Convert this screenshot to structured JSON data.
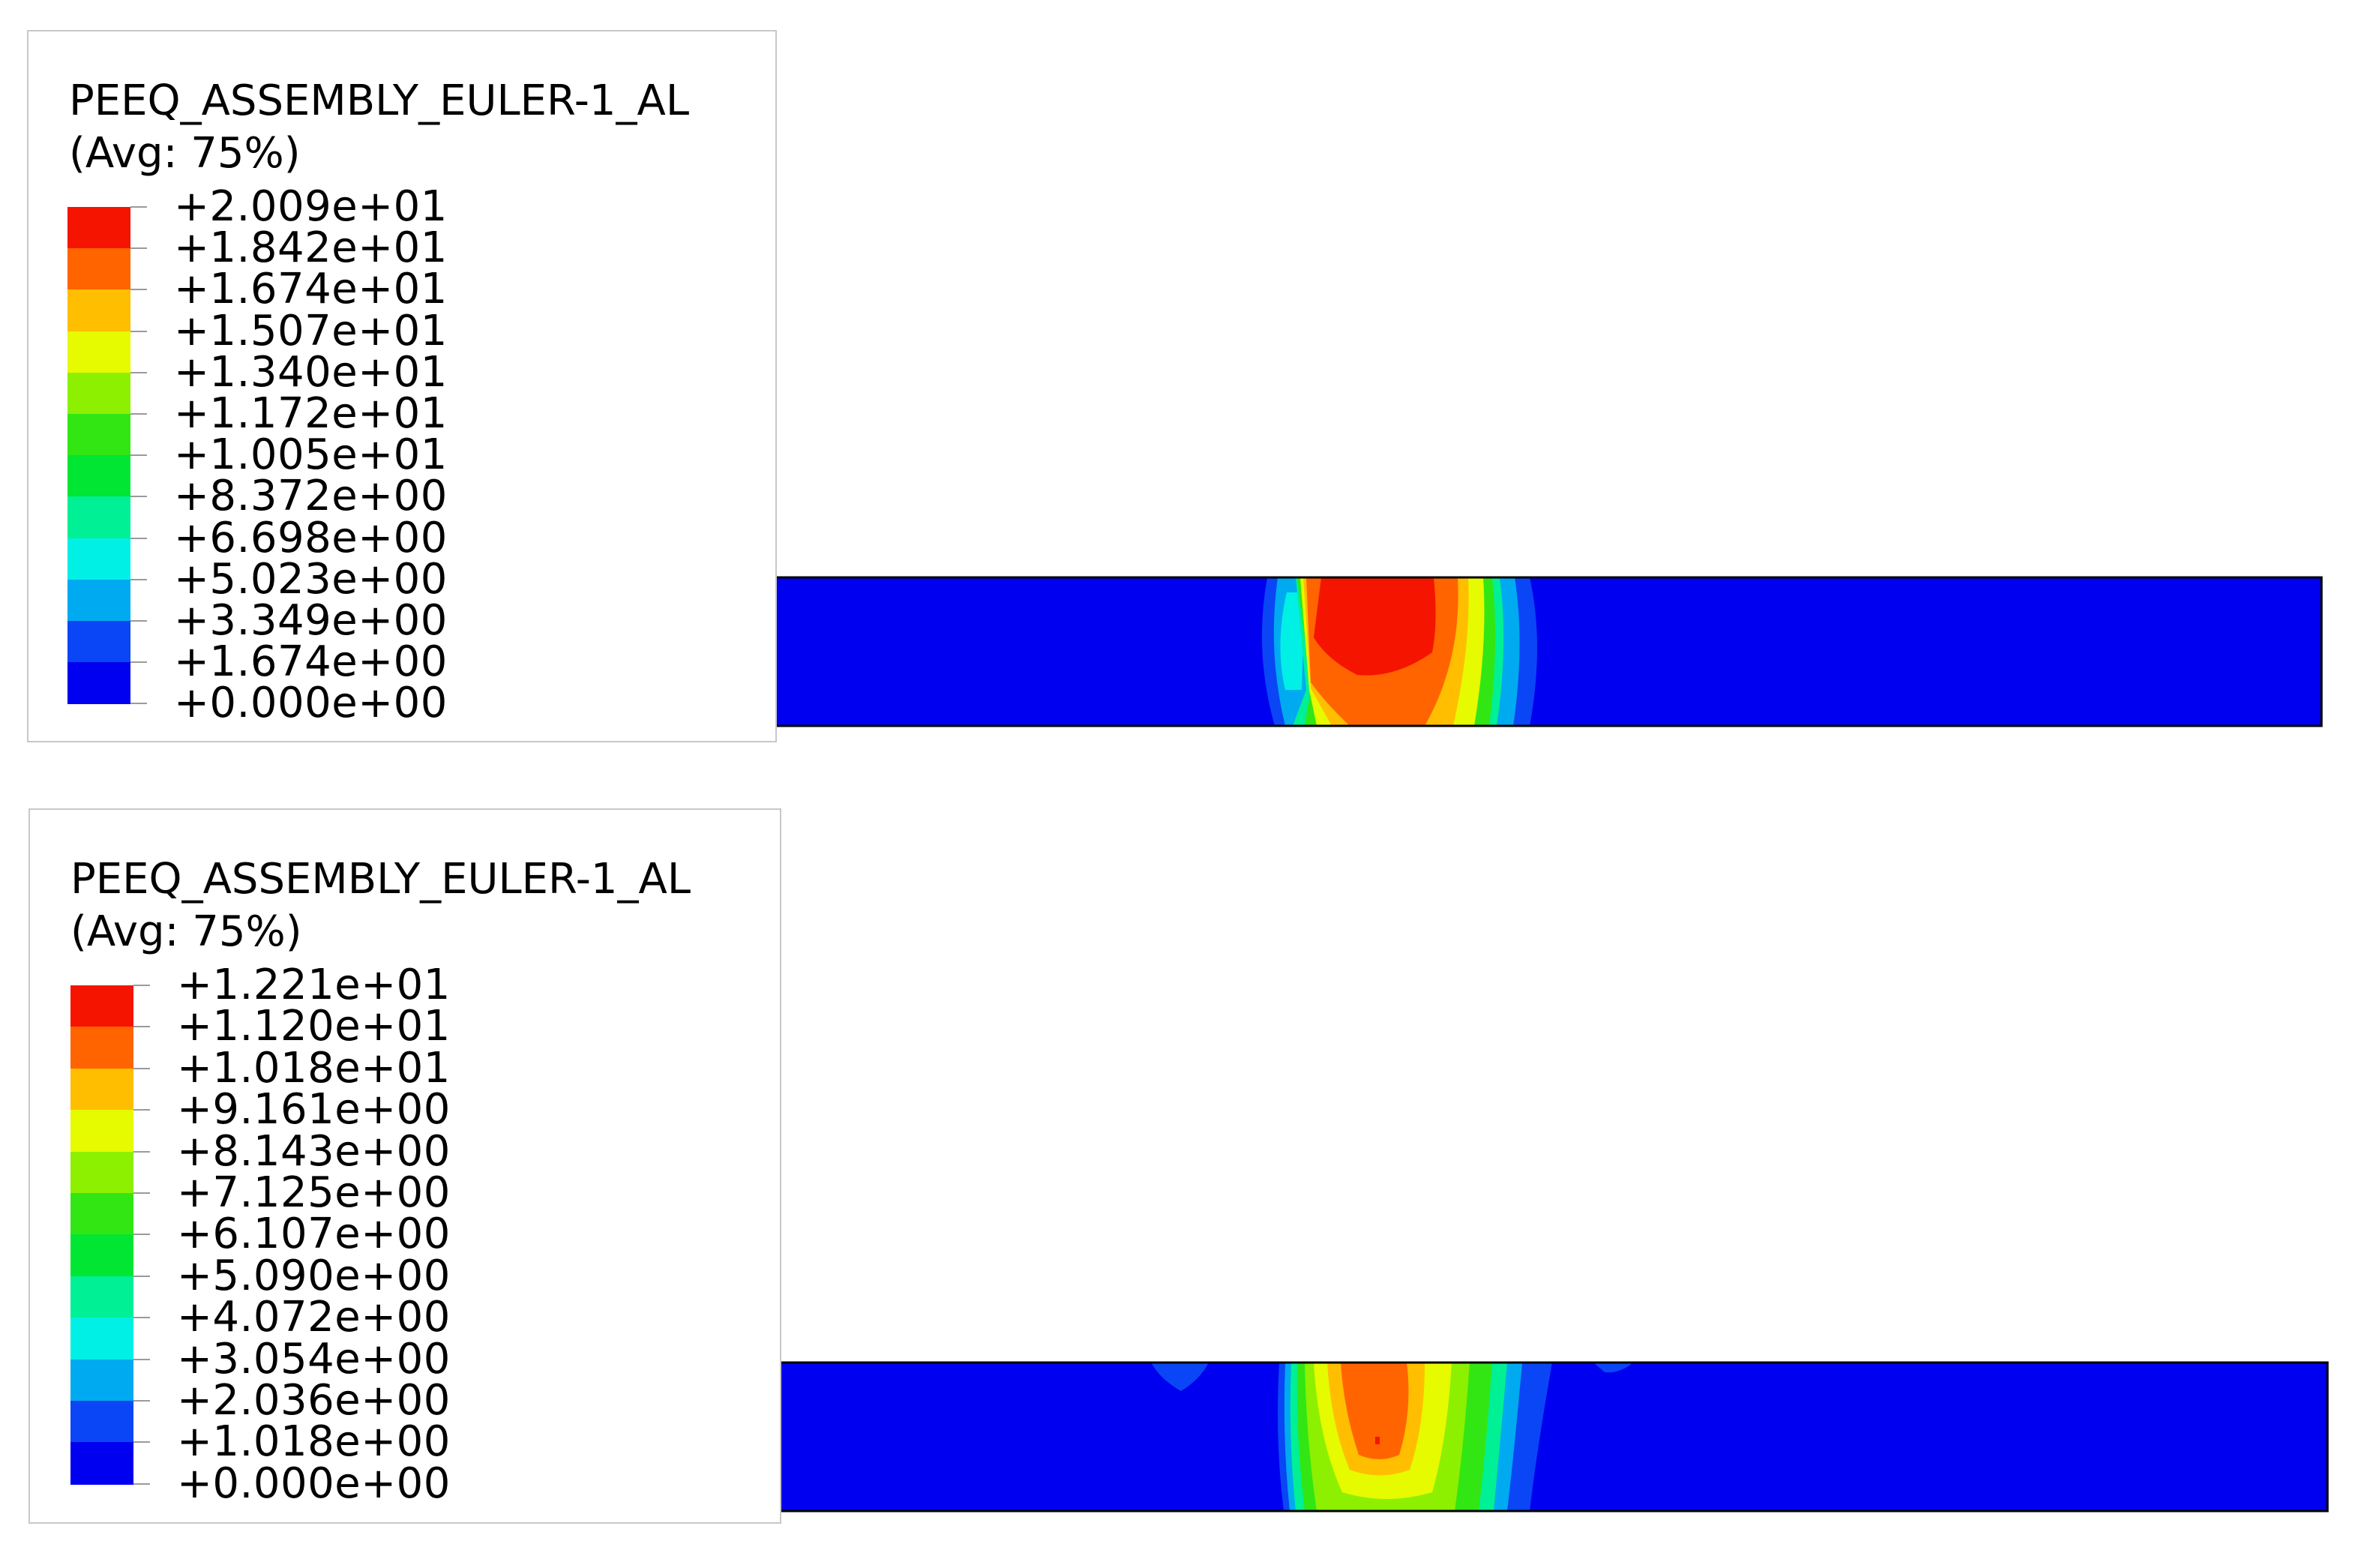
{
  "colors": {
    "scale": [
      "#0000f0",
      "#0a46f5",
      "#00aaf0",
      "#00f0e6",
      "#00f096",
      "#00e632",
      "#32e614",
      "#8cf000",
      "#e6fa00",
      "#ffbe00",
      "#ff6400",
      "#f51400"
    ],
    "frame": "#000000",
    "legend_border": "#c8c8c8"
  },
  "panels": [
    {
      "title": "PEEQ_ASSEMBLY_EULER-1_AL",
      "subtitle": "(Avg: 75%)",
      "levels": [
        "+2.009e+01",
        "+1.842e+01",
        "+1.674e+01",
        "+1.507e+01",
        "+1.340e+01",
        "+1.172e+01",
        "+1.005e+01",
        "+8.372e+00",
        "+6.698e+00",
        "+5.023e+00",
        "+3.349e+00",
        "+1.674e+00",
        "+0.000e+00"
      ]
    },
    {
      "title": "PEEQ_ASSEMBLY_EULER-1_AL",
      "subtitle": "(Avg: 75%)",
      "levels": [
        "+1.221e+01",
        "+1.120e+01",
        "+1.018e+01",
        "+9.161e+00",
        "+8.143e+00",
        "+7.125e+00",
        "+6.107e+00",
        "+5.090e+00",
        "+4.072e+00",
        "+3.054e+00",
        "+2.036e+00",
        "+1.018e+00",
        "+0.000e+00"
      ]
    }
  ]
}
